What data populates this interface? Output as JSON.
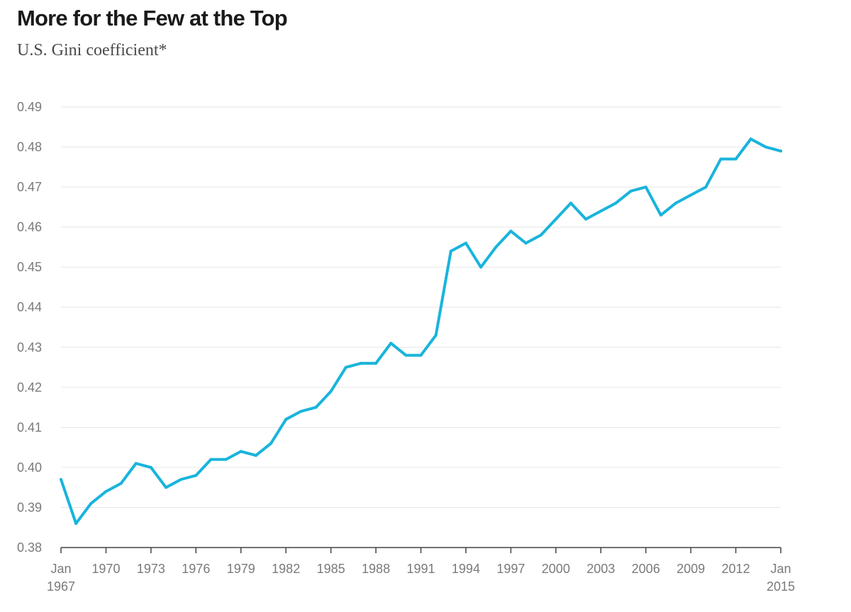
{
  "chart_data": {
    "type": "line",
    "title": "More for the Few at the Top",
    "subtitle": "U.S. Gini coefficient*",
    "xlabel": "",
    "ylabel": "",
    "ylim": [
      0.38,
      0.49
    ],
    "xlim": [
      1967,
      2015
    ],
    "grid": true,
    "line_color": "#19b4dc",
    "y_ticks": [
      {
        "value": 0.38,
        "label": "0.38"
      },
      {
        "value": 0.39,
        "label": "0.39"
      },
      {
        "value": 0.4,
        "label": "0.40"
      },
      {
        "value": 0.41,
        "label": "0.41"
      },
      {
        "value": 0.42,
        "label": "0.42"
      },
      {
        "value": 0.43,
        "label": "0.43"
      },
      {
        "value": 0.44,
        "label": "0.44"
      },
      {
        "value": 0.45,
        "label": "0.45"
      },
      {
        "value": 0.46,
        "label": "0.46"
      },
      {
        "value": 0.47,
        "label": "0.47"
      },
      {
        "value": 0.48,
        "label": "0.48"
      },
      {
        "value": 0.49,
        "label": "0.49"
      }
    ],
    "x_ticks": [
      {
        "value": 1967,
        "lines": [
          "Jan",
          "1967"
        ]
      },
      {
        "value": 1970,
        "lines": [
          "1970"
        ]
      },
      {
        "value": 1973,
        "lines": [
          "1973"
        ]
      },
      {
        "value": 1976,
        "lines": [
          "1976"
        ]
      },
      {
        "value": 1979,
        "lines": [
          "1979"
        ]
      },
      {
        "value": 1982,
        "lines": [
          "1982"
        ]
      },
      {
        "value": 1985,
        "lines": [
          "1985"
        ]
      },
      {
        "value": 1988,
        "lines": [
          "1988"
        ]
      },
      {
        "value": 1991,
        "lines": [
          "1991"
        ]
      },
      {
        "value": 1994,
        "lines": [
          "1994"
        ]
      },
      {
        "value": 1997,
        "lines": [
          "1997"
        ]
      },
      {
        "value": 2000,
        "lines": [
          "2000"
        ]
      },
      {
        "value": 2003,
        "lines": [
          "2003"
        ]
      },
      {
        "value": 2006,
        "lines": [
          "2006"
        ]
      },
      {
        "value": 2009,
        "lines": [
          "2009"
        ]
      },
      {
        "value": 2012,
        "lines": [
          "2012"
        ]
      },
      {
        "value": 2015,
        "lines": [
          "Jan",
          "2015"
        ]
      }
    ],
    "series": [
      {
        "name": "U.S. Gini coefficient",
        "x": [
          1967,
          1968,
          1969,
          1970,
          1971,
          1972,
          1973,
          1974,
          1975,
          1976,
          1977,
          1978,
          1979,
          1980,
          1981,
          1982,
          1983,
          1984,
          1985,
          1986,
          1987,
          1988,
          1989,
          1990,
          1991,
          1992,
          1993,
          1994,
          1995,
          1996,
          1997,
          1998,
          1999,
          2000,
          2001,
          2002,
          2003,
          2004,
          2005,
          2006,
          2007,
          2008,
          2009,
          2010,
          2011,
          2012,
          2013,
          2014,
          2015
        ],
        "values": [
          0.397,
          0.386,
          0.391,
          0.394,
          0.396,
          0.401,
          0.4,
          0.395,
          0.397,
          0.398,
          0.402,
          0.402,
          0.404,
          0.403,
          0.406,
          0.412,
          0.414,
          0.415,
          0.419,
          0.425,
          0.426,
          0.426,
          0.431,
          0.428,
          0.428,
          0.433,
          0.454,
          0.456,
          0.45,
          0.455,
          0.459,
          0.456,
          0.458,
          0.462,
          0.466,
          0.462,
          0.464,
          0.466,
          0.469,
          0.47,
          0.463,
          0.466,
          0.468,
          0.47,
          0.477,
          0.477,
          0.482,
          0.48,
          0.479
        ]
      }
    ]
  }
}
